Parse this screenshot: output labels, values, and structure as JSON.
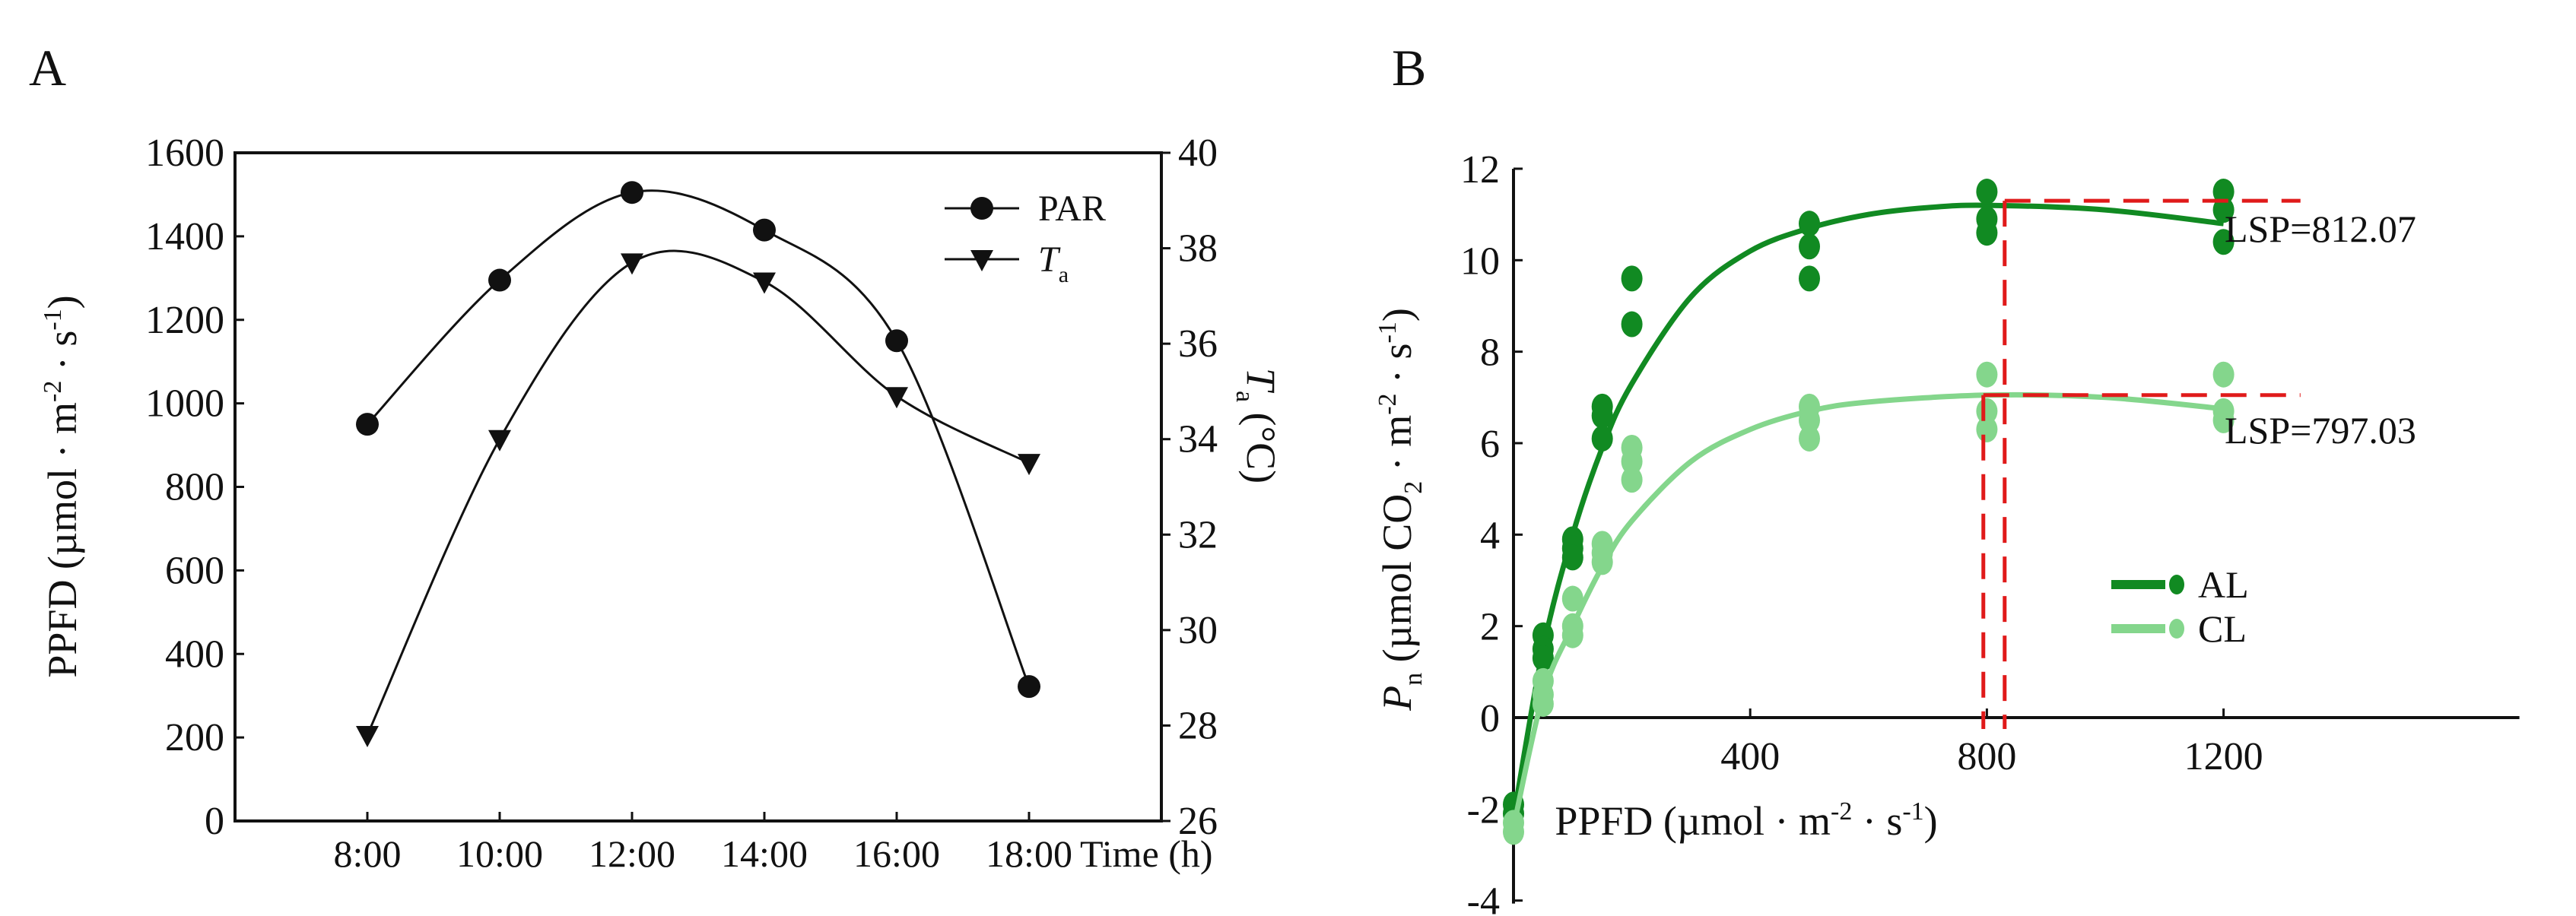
{
  "colors": {
    "axis": "#111111",
    "al": "#118a22",
    "cl": "#84d68c",
    "lsp": "#e01a1a"
  },
  "chart_data": [
    {
      "panel": "A",
      "type": "line",
      "x_ticks": [
        "8:00",
        "10:00",
        "12:00",
        "14:00",
        "16:00",
        "18:00"
      ],
      "x": [
        8,
        10,
        12,
        14,
        16,
        18
      ],
      "xlim": [
        6,
        20
      ],
      "xlabel": "Time (h)",
      "ylabel": {
        "a": "PPFD (µmol · m",
        "sup1": "-2",
        "b": " · s",
        "sup2": "-1",
        "c": ")"
      },
      "ylim": [
        0,
        1600
      ],
      "y_ticks": [
        "0",
        "200",
        "400",
        "600",
        "800",
        "1000",
        "1200",
        "1400",
        "1600"
      ],
      "y2label": {
        "T": "T",
        "sub": "a",
        "unit": " (°C)"
      },
      "y2lim": [
        26,
        40
      ],
      "y2_ticks": [
        "26",
        "28",
        "30",
        "32",
        "34",
        "36",
        "38",
        "40"
      ],
      "series": [
        {
          "name": "PAR",
          "axis": "left",
          "marker": "circle",
          "values": [
            950,
            1295,
            1505,
            1415,
            1150,
            322
          ]
        },
        {
          "name": "T",
          "name_sub": "a",
          "axis": "right",
          "marker": "triangle-down",
          "values": [
            27.8,
            34.0,
            37.7,
            37.3,
            34.9,
            33.5
          ]
        }
      ],
      "legend": "top-right",
      "grid": false
    },
    {
      "panel": "B",
      "type": "scatter",
      "xlabel": {
        "a": "PPFD (µmol · m",
        "sup1": "-2",
        "b": " · s",
        "sup2": "-1",
        "c": ")"
      },
      "ylabel": {
        "P": "P",
        "sub": "n",
        "a": " (µmol CO",
        "sub2": "2",
        "b": " · m",
        "sup1": "-2",
        "c": " · s",
        "sup2": "-1",
        "d": ")"
      },
      "xlim": [
        0,
        1700
      ],
      "ylim": [
        -4,
        12
      ],
      "x_ticks": [
        "400",
        "800",
        "1200"
      ],
      "x_tick_values": [
        400,
        800,
        1200
      ],
      "y_ticks": [
        "-4",
        "-2",
        "0",
        "2",
        "4",
        "6",
        "8",
        "10",
        "12"
      ],
      "series": [
        {
          "name": "AL",
          "points": [
            [
              0,
              -1.9
            ],
            [
              0,
              -2.1
            ],
            [
              50,
              1.8
            ],
            [
              50,
              1.5
            ],
            [
              50,
              1.3
            ],
            [
              100,
              3.9
            ],
            [
              100,
              3.7
            ],
            [
              100,
              3.5
            ],
            [
              150,
              6.8
            ],
            [
              150,
              6.6
            ],
            [
              150,
              6.1
            ],
            [
              200,
              9.6
            ],
            [
              200,
              8.6
            ],
            [
              500,
              10.8
            ],
            [
              500,
              10.3
            ],
            [
              500,
              9.6
            ],
            [
              800,
              11.5
            ],
            [
              800,
              10.9
            ],
            [
              800,
              10.6
            ],
            [
              1200,
              11.5
            ],
            [
              1200,
              11.1
            ],
            [
              1200,
              10.4
            ]
          ],
          "fit": [
            [
              0,
              -2.2
            ],
            [
              50,
              1.5
            ],
            [
              100,
              4.0
            ],
            [
              150,
              5.9
            ],
            [
              200,
              7.3
            ],
            [
              300,
              9.2
            ],
            [
              400,
              10.2
            ],
            [
              500,
              10.7
            ],
            [
              600,
              11.0
            ],
            [
              700,
              11.15
            ],
            [
              800,
              11.2
            ],
            [
              1000,
              11.1
            ],
            [
              1200,
              10.8
            ]
          ],
          "lsp": 812.07,
          "lsp_label": "LSP=812.07",
          "lsp_pn": 11.3,
          "lsp_label_y": 10.7
        },
        {
          "name": "CL",
          "points": [
            [
              0,
              -2.3
            ],
            [
              0,
              -2.5
            ],
            [
              50,
              0.8
            ],
            [
              50,
              0.5
            ],
            [
              50,
              0.3
            ],
            [
              100,
              2.6
            ],
            [
              100,
              2.0
            ],
            [
              100,
              1.8
            ],
            [
              150,
              3.8
            ],
            [
              150,
              3.6
            ],
            [
              150,
              3.4
            ],
            [
              200,
              5.9
            ],
            [
              200,
              5.6
            ],
            [
              200,
              5.2
            ],
            [
              500,
              6.8
            ],
            [
              500,
              6.5
            ],
            [
              500,
              6.1
            ],
            [
              800,
              7.5
            ],
            [
              800,
              6.7
            ],
            [
              800,
              6.3
            ],
            [
              1200,
              7.5
            ],
            [
              1200,
              6.7
            ],
            [
              1200,
              6.5
            ]
          ],
          "fit": [
            [
              0,
              -2.4
            ],
            [
              50,
              0.5
            ],
            [
              100,
              2.0
            ],
            [
              150,
              3.3
            ],
            [
              200,
              4.3
            ],
            [
              300,
              5.6
            ],
            [
              400,
              6.3
            ],
            [
              500,
              6.7
            ],
            [
              600,
              6.9
            ],
            [
              800,
              7.05
            ],
            [
              1000,
              7.0
            ],
            [
              1200,
              6.75
            ]
          ],
          "lsp": 797.03,
          "lsp_label": "LSP=797.03",
          "lsp_pn": 7.05,
          "lsp_label_y": 6.3
        }
      ],
      "legend": "bottom-right",
      "grid": false
    }
  ],
  "panels": {
    "a": "A",
    "b": "B"
  }
}
